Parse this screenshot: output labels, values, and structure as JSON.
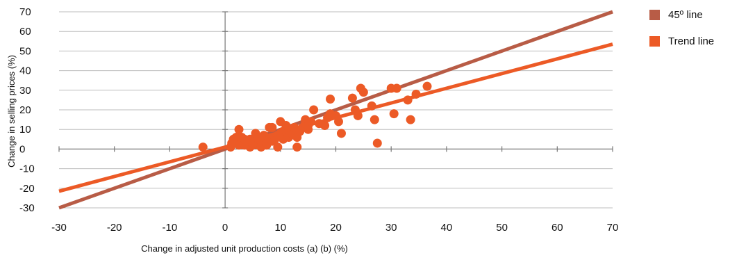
{
  "chart_data": {
    "type": "scatter",
    "title": "",
    "xlabel": "Change in adjusted unit production costs (a) (b) (%)",
    "ylabel": "Change in selling prices (%)",
    "xlim": [
      -30,
      70
    ],
    "ylim": [
      -30,
      70
    ],
    "x_ticks": [
      -30,
      -20,
      -10,
      0,
      10,
      20,
      30,
      40,
      50,
      60,
      70
    ],
    "y_ticks": [
      -30,
      -20,
      -10,
      0,
      10,
      20,
      30,
      40,
      50,
      60,
      70
    ],
    "x_tick_labels": [
      "-30",
      "-20",
      "-10",
      "0",
      "10",
      "20",
      "30",
      "40",
      "50",
      "60",
      "70"
    ],
    "y_tick_labels": [
      "-30",
      "-20",
      "-10",
      "0",
      "10",
      "20",
      "30",
      "40",
      "50",
      "60",
      "70"
    ],
    "grid": "horizontal",
    "legend_position": "right",
    "colors": {
      "line45": "#b85c46",
      "trend": "#ec5a26",
      "points": "#ec5a26",
      "grid": "#bdbdbd",
      "axis": "#777777"
    },
    "lines": [
      {
        "name": "45º line",
        "x": [
          -30,
          70
        ],
        "y": [
          -30,
          70
        ],
        "color": "#b85c46"
      },
      {
        "name": "Trend line",
        "x": [
          -30,
          70
        ],
        "y": [
          -21.5,
          53.5
        ],
        "color": "#ec5a26"
      }
    ],
    "points": [
      [
        -4,
        1
      ],
      [
        1,
        1
      ],
      [
        1.2,
        3
      ],
      [
        1.5,
        5
      ],
      [
        2,
        3
      ],
      [
        2,
        6
      ],
      [
        2.5,
        2
      ],
      [
        2.5,
        10
      ],
      [
        3,
        4
      ],
      [
        3,
        6
      ],
      [
        3.5,
        2
      ],
      [
        3.5,
        5
      ],
      [
        4,
        3
      ],
      [
        4,
        4
      ],
      [
        4.5,
        1
      ],
      [
        4.5,
        5
      ],
      [
        5,
        2
      ],
      [
        5,
        3
      ],
      [
        5.5,
        8
      ],
      [
        6,
        2
      ],
      [
        6,
        5
      ],
      [
        6.5,
        1
      ],
      [
        6.5,
        4
      ],
      [
        7,
        6
      ],
      [
        7,
        7
      ],
      [
        7.5,
        2
      ],
      [
        7.5,
        3
      ],
      [
        8,
        5
      ],
      [
        8,
        11
      ],
      [
        8.5,
        4
      ],
      [
        8.5,
        11
      ],
      [
        9,
        5
      ],
      [
        9,
        6
      ],
      [
        9.5,
        1
      ],
      [
        9.5,
        7
      ],
      [
        10,
        8
      ],
      [
        10,
        14
      ],
      [
        10.5,
        5
      ],
      [
        10.5,
        9
      ],
      [
        11,
        9
      ],
      [
        11,
        12
      ],
      [
        11.5,
        6
      ],
      [
        12,
        8
      ],
      [
        12,
        10
      ],
      [
        12.5,
        11
      ],
      [
        13,
        1
      ],
      [
        13,
        6
      ],
      [
        13.5,
        9
      ],
      [
        14,
        11
      ],
      [
        14.5,
        13
      ],
      [
        14.5,
        15
      ],
      [
        15,
        10
      ],
      [
        15,
        12
      ],
      [
        15.5,
        14
      ],
      [
        16,
        20
      ],
      [
        17,
        13
      ],
      [
        18,
        12
      ],
      [
        18.5,
        16
      ],
      [
        19,
        18
      ],
      [
        19,
        25.5
      ],
      [
        20,
        17
      ],
      [
        20.5,
        14
      ],
      [
        21,
        8
      ],
      [
        23,
        26
      ],
      [
        23.5,
        20
      ],
      [
        24,
        17
      ],
      [
        24.5,
        31
      ],
      [
        25,
        29
      ],
      [
        26.5,
        22
      ],
      [
        27,
        15
      ],
      [
        27.5,
        3
      ],
      [
        30,
        31
      ],
      [
        30.5,
        18
      ],
      [
        31,
        31
      ],
      [
        33,
        25
      ],
      [
        33.5,
        15
      ],
      [
        34.5,
        28
      ],
      [
        36.5,
        32
      ]
    ]
  }
}
